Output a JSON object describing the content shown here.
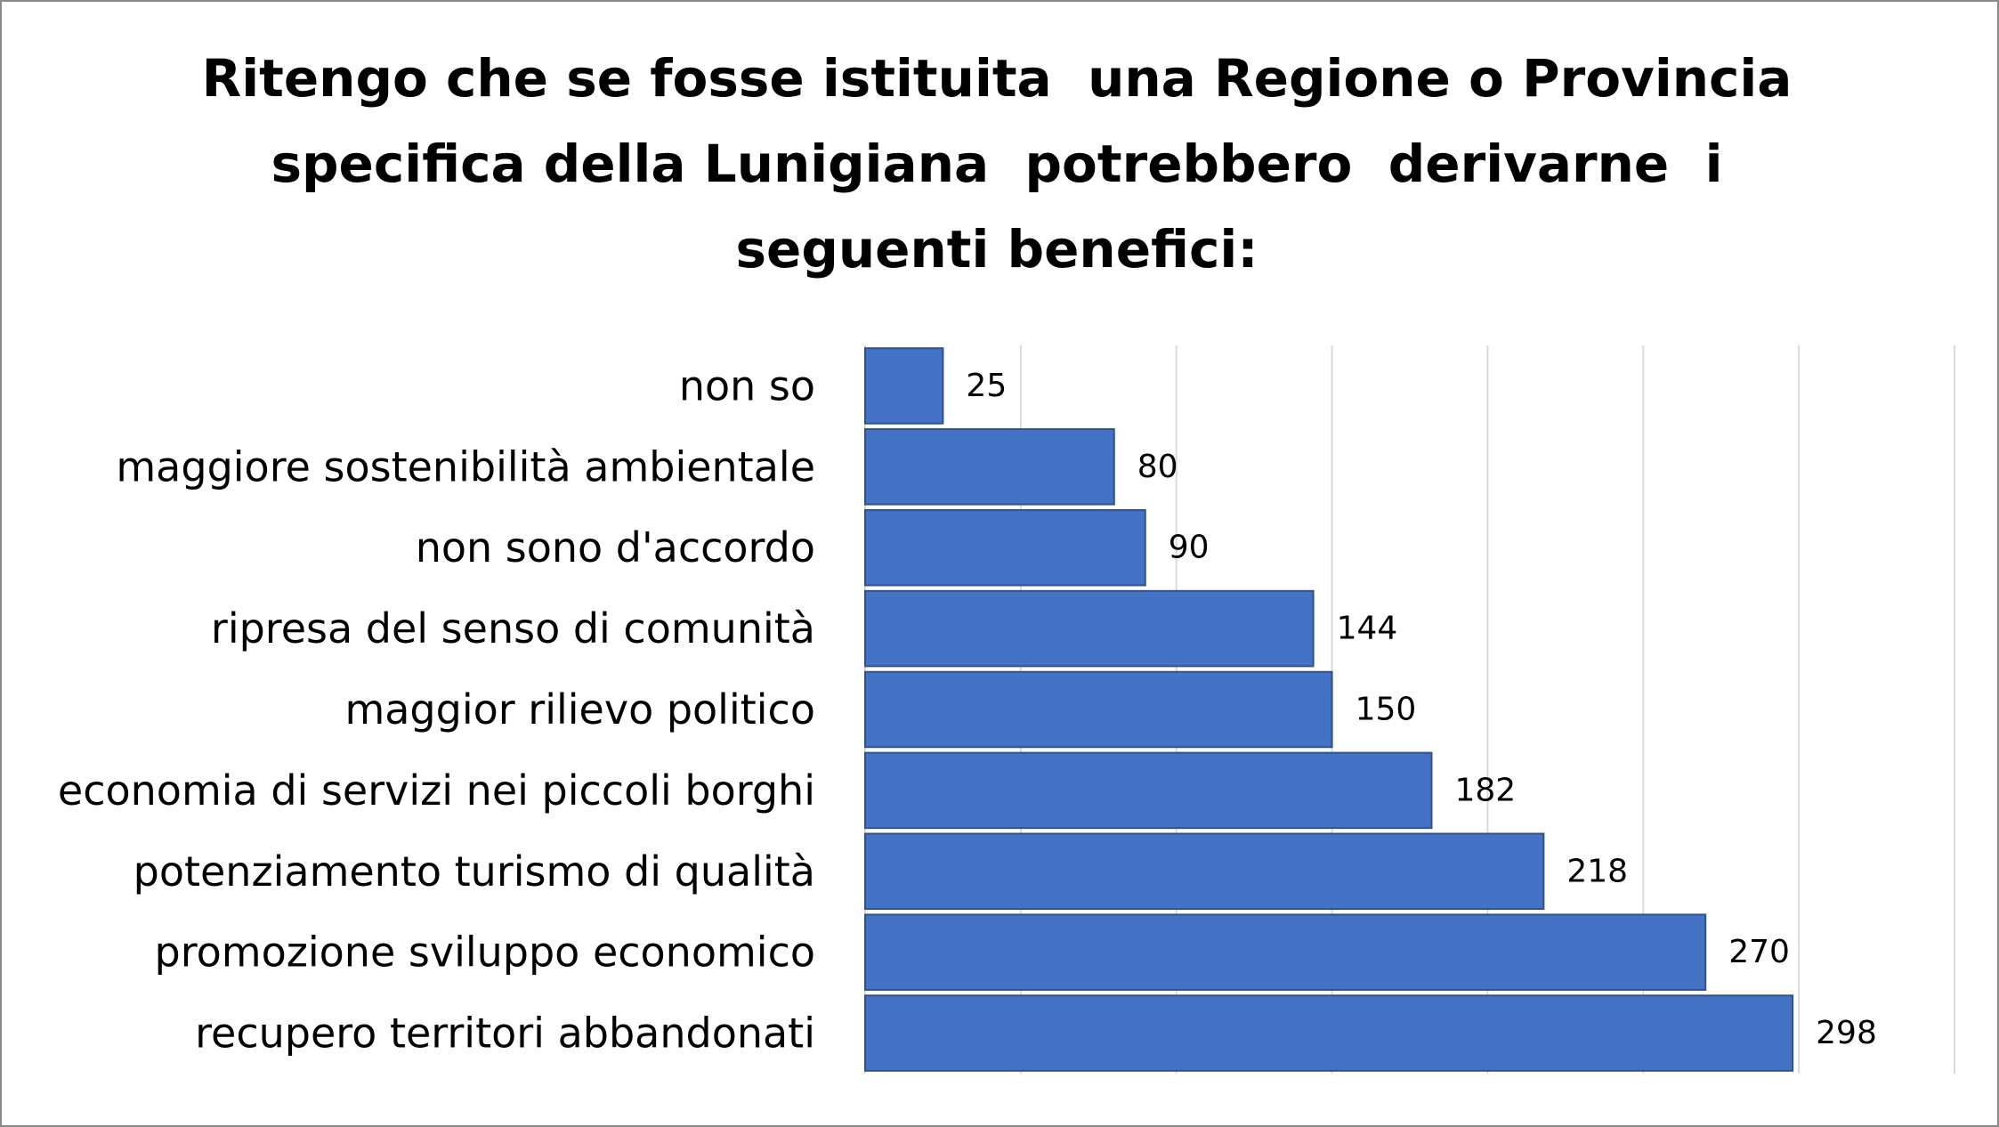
{
  "chart_data": {
    "type": "bar",
    "orientation": "horizontal",
    "title": "Ritengo che se fosse istituita una Regione o Provincia specifica della Lunigiana potrebbero derivarne i seguenti benefici:",
    "title_lines": [
      "Ritengo che se fosse istituita  una Regione o Provincia",
      "specifica della Lunigiana  potrebbero  derivarne  i",
      "seguenti benefici:"
    ],
    "categories": [
      "non so",
      "maggiore sostenibilità ambientale",
      "non sono d'accordo",
      "ripresa del senso di comunità",
      "maggior rilievo politico",
      "economia di servizi nei piccoli borghi",
      "potenziamento turismo di qualità",
      "promozione sviluppo economico",
      "recupero territori abbandonati"
    ],
    "values": [
      25,
      80,
      90,
      144,
      150,
      182,
      218,
      270,
      298
    ],
    "xlim": [
      0,
      350
    ],
    "grid": true,
    "data_labels": true,
    "legend": "none",
    "bar_color": "#4472C4",
    "grid_color": "#D9D9D9"
  }
}
